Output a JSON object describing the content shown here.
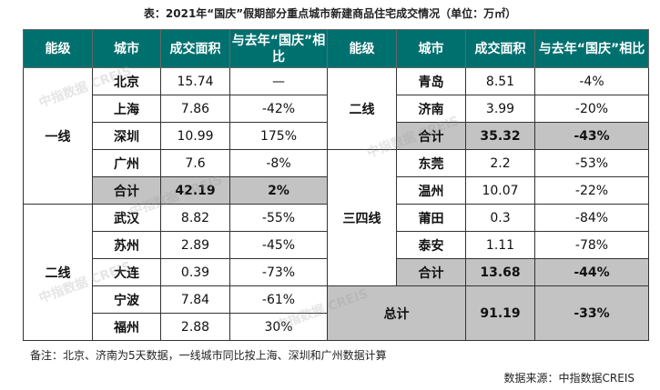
{
  "title": "表：2021年“国庆”假期部分重点城市新建商品住宅成交情况（单位：万㎡）",
  "headers": [
    "能级",
    "城市",
    "成交面积",
    "与去年“国庆”相比"
  ],
  "left": {
    "tier1": "一线",
    "tier2": "二线",
    "rows": [
      {
        "city": "北京",
        "area": "15.74",
        "yoy": "—"
      },
      {
        "city": "上海",
        "area": "7.86",
        "yoy": "-42%"
      },
      {
        "city": "深圳",
        "area": "10.99",
        "yoy": "175%"
      },
      {
        "city": "广州",
        "area": "7.6",
        "yoy": "-8%"
      },
      {
        "city": "合计",
        "area": "42.19",
        "yoy": "2%"
      },
      {
        "city": "武汉",
        "area": "8.82",
        "yoy": "-55%"
      },
      {
        "city": "苏州",
        "area": "2.89",
        "yoy": "-45%"
      },
      {
        "city": "大连",
        "area": "0.39",
        "yoy": "-73%"
      },
      {
        "city": "宁波",
        "area": "7.84",
        "yoy": "-61%"
      },
      {
        "city": "福州",
        "area": "2.88",
        "yoy": "30%"
      }
    ]
  },
  "right": {
    "tier2": "二线",
    "tier34": "三四线",
    "rows": [
      {
        "city": "青岛",
        "area": "8.51",
        "yoy": "-4%"
      },
      {
        "city": "济南",
        "area": "3.99",
        "yoy": "-20%"
      },
      {
        "city": "合计",
        "area": "35.32",
        "yoy": "-43%"
      },
      {
        "city": "东莞",
        "area": "2.2",
        "yoy": "-53%"
      },
      {
        "city": "温州",
        "area": "10.07",
        "yoy": "-22%"
      },
      {
        "city": "莆田",
        "area": "0.3",
        "yoy": "-84%"
      },
      {
        "city": "泰安",
        "area": "1.11",
        "yoy": "-78%"
      },
      {
        "city": "合计",
        "area": "13.68",
        "yoy": "-44%"
      }
    ],
    "total": {
      "label": "总计",
      "area": "91.19",
      "yoy": "-33%"
    }
  },
  "watermark": "中指数据 CREIS",
  "note": "备注：北京、济南为5天数据，一线城市同比按上海、深圳和广州数据计算",
  "source": "数据来源：中指数据CREIS"
}
